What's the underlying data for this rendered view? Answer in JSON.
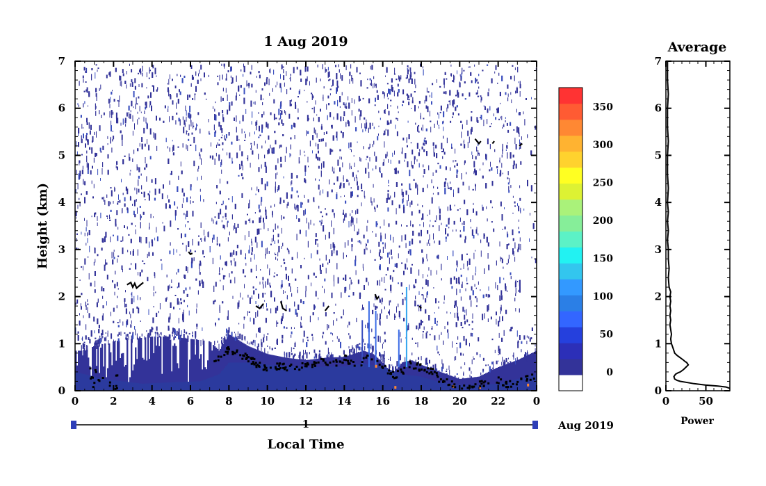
{
  "chart_data": [
    {
      "type": "heatmap",
      "title": "1 Aug 2019",
      "xlabel": "Local Time",
      "ylabel": "Height (km)",
      "xlim": [
        0,
        24
      ],
      "ylim": [
        0,
        7
      ],
      "x_ticks": [
        "0",
        "2",
        "4",
        "6",
        "8",
        "10",
        "12",
        "14",
        "16",
        "18",
        "20",
        "22",
        "0"
      ],
      "y_ticks": [
        "0",
        "1",
        "2",
        "3",
        "4",
        "5",
        "6",
        "7"
      ],
      "date_bar": {
        "day_label": "1",
        "month_label": "Aug 2019"
      },
      "colorbar": {
        "ticks": [
          "0",
          "50",
          "100",
          "150",
          "200",
          "250",
          "300",
          "350"
        ],
        "range": [
          -25,
          375
        ],
        "colors": [
          "#ffffff",
          "#333399",
          "#2c2fb8",
          "#2540dd",
          "#3366ff",
          "#2b7fe6",
          "#3399ff",
          "#33c6ee",
          "#22f2f2",
          "#5cf2c6",
          "#86ee99",
          "#aaf27a",
          "#ddf233",
          "#ffff22",
          "#ffd22e",
          "#ffb331",
          "#ff8833",
          "#ff5b33",
          "#ff3333"
        ]
      },
      "boundary_layer_top_km": [
        [
          0,
          0.85
        ],
        [
          0.5,
          0.85
        ],
        [
          1.0,
          0.95
        ],
        [
          2.0,
          1.05
        ],
        [
          3.0,
          1.1
        ],
        [
          4.0,
          1.15
        ],
        [
          5.0,
          1.15
        ],
        [
          6.0,
          1.1
        ],
        [
          7.0,
          1.05
        ],
        [
          7.5,
          0.85
        ],
        [
          8.0,
          1.2
        ],
        [
          9.0,
          0.95
        ],
        [
          10.0,
          0.78
        ],
        [
          11.0,
          0.7
        ],
        [
          12.0,
          0.65
        ],
        [
          13.0,
          0.7
        ],
        [
          14.0,
          0.72
        ],
        [
          15.0,
          0.85
        ],
        [
          15.5,
          0.78
        ],
        [
          16.0,
          0.6
        ],
        [
          16.5,
          0.35
        ],
        [
          17.0,
          0.6
        ],
        [
          17.5,
          0.65
        ],
        [
          18.0,
          0.55
        ],
        [
          19.0,
          0.4
        ],
        [
          20.0,
          0.25
        ],
        [
          21.0,
          0.3
        ],
        [
          22.0,
          0.5
        ],
        [
          23.0,
          0.65
        ],
        [
          24.0,
          0.85
        ]
      ],
      "dense_layer_top_km": [
        [
          0,
          0.4
        ],
        [
          1.5,
          0.25
        ],
        [
          2.5,
          0.2
        ],
        [
          3.5,
          0.15
        ],
        [
          5.0,
          0.18
        ],
        [
          6.5,
          0.2
        ],
        [
          7.5,
          0.35
        ],
        [
          8.0,
          0.6
        ],
        [
          9.0,
          0.6
        ],
        [
          10.0,
          0.55
        ],
        [
          12.0,
          0.5
        ],
        [
          14.0,
          0.52
        ],
        [
          15.0,
          0.58
        ],
        [
          16.0,
          0.5
        ],
        [
          17.0,
          0.35
        ],
        [
          18.0,
          0.3
        ],
        [
          19.0,
          0.18
        ],
        [
          20.0,
          0.12
        ],
        [
          21.0,
          0.12
        ],
        [
          22.0,
          0.15
        ],
        [
          23.0,
          0.25
        ],
        [
          24.0,
          0.35
        ]
      ],
      "feature_traces_km": [
        [
          [
            2.7,
            2.25
          ],
          [
            2.9,
            2.3
          ],
          [
            3.0,
            2.2
          ],
          [
            3.1,
            2.28
          ],
          [
            3.2,
            2.18
          ],
          [
            3.4,
            2.25
          ],
          [
            3.55,
            2.3
          ]
        ],
        [
          [
            5.9,
            2.95
          ],
          [
            6.0,
            2.9
          ],
          [
            6.1,
            2.92
          ]
        ],
        [
          [
            20.8,
            5.35
          ],
          [
            21.0,
            5.25
          ],
          [
            21.1,
            5.3
          ]
        ],
        [
          [
            21.7,
            5.25
          ],
          [
            21.8,
            5.3
          ]
        ],
        [
          [
            23.1,
            5.2
          ],
          [
            23.25,
            5.25
          ]
        ],
        [
          [
            9.4,
            1.8
          ],
          [
            9.6,
            1.75
          ],
          [
            9.8,
            1.85
          ]
        ],
        [
          [
            10.7,
            1.9
          ],
          [
            10.8,
            1.75
          ],
          [
            11.0,
            1.7
          ]
        ],
        [
          [
            13.0,
            1.7
          ],
          [
            13.2,
            1.8
          ]
        ],
        [
          [
            15.6,
            2.05
          ],
          [
            15.7,
            1.95
          ],
          [
            15.8,
            2.0
          ]
        ],
        [
          [
            17.9,
            1.8
          ],
          [
            18.0,
            1.75
          ]
        ]
      ],
      "bl_dot_trace_km": [
        [
          7.2,
          0.65
        ],
        [
          7.5,
          0.75
        ],
        [
          8.0,
          0.9
        ],
        [
          8.5,
          0.8
        ],
        [
          9.0,
          0.7
        ],
        [
          9.5,
          0.55
        ],
        [
          10.0,
          0.5
        ],
        [
          10.5,
          0.55
        ],
        [
          11.0,
          0.5
        ],
        [
          12.0,
          0.55
        ],
        [
          12.5,
          0.6
        ],
        [
          13.0,
          0.65
        ],
        [
          13.5,
          0.6
        ],
        [
          14.0,
          0.7
        ],
        [
          14.5,
          0.55
        ],
        [
          15.0,
          0.65
        ],
        [
          15.3,
          0.75
        ],
        [
          15.6,
          0.65
        ],
        [
          16.0,
          0.5
        ],
        [
          16.3,
          0.4
        ],
        [
          16.6,
          0.35
        ],
        [
          17.0,
          0.45
        ],
        [
          17.3,
          0.6
        ],
        [
          17.6,
          0.55
        ],
        [
          18.0,
          0.5
        ],
        [
          18.5,
          0.45
        ],
        [
          18.8,
          0.3
        ],
        [
          19.2,
          0.2
        ],
        [
          19.6,
          0.15
        ],
        [
          20.0,
          0.12
        ],
        [
          20.5,
          0.1
        ],
        [
          21.0,
          0.15
        ],
        [
          21.5,
          0.2
        ],
        [
          22.0,
          0.25
        ],
        [
          22.5,
          0.15
        ],
        [
          23.0,
          0.2
        ],
        [
          23.5,
          0.3
        ],
        [
          24.0,
          0.35
        ]
      ],
      "warm_spots_km": [
        [
          15.6,
          0.55
        ],
        [
          16.6,
          0.1
        ],
        [
          19.6,
          0.12
        ],
        [
          21.0,
          0.1
        ],
        [
          23.5,
          0.15
        ]
      ]
    },
    {
      "type": "line",
      "title": "Average",
      "xlabel": "Power",
      "ylabel": "",
      "xlim": [
        0,
        80
      ],
      "ylim": [
        0,
        7
      ],
      "x_ticks": [
        "0",
        "50"
      ],
      "y_ticks": [
        "0",
        "1",
        "2",
        "3",
        "4",
        "5",
        "6",
        "7"
      ],
      "series": [
        {
          "points": [
            [
              80,
              0.05
            ],
            [
              75,
              0.08
            ],
            [
              65,
              0.1
            ],
            [
              50,
              0.12
            ],
            [
              35,
              0.15
            ],
            [
              25,
              0.18
            ],
            [
              18,
              0.2
            ],
            [
              14,
              0.22
            ],
            [
              11,
              0.25
            ],
            [
              10,
              0.3
            ],
            [
              12,
              0.35
            ],
            [
              15,
              0.38
            ],
            [
              18,
              0.4
            ],
            [
              22,
              0.45
            ],
            [
              25,
              0.5
            ],
            [
              28,
              0.55
            ],
            [
              26,
              0.6
            ],
            [
              24,
              0.62
            ],
            [
              22,
              0.65
            ],
            [
              18,
              0.7
            ],
            [
              14,
              0.75
            ],
            [
              11,
              0.8
            ],
            [
              9,
              0.9
            ],
            [
              8,
              0.95
            ],
            [
              7,
              1.0
            ],
            [
              6,
              1.1
            ],
            [
              7,
              1.2
            ],
            [
              6,
              1.3
            ],
            [
              5,
              1.4
            ],
            [
              6,
              1.5
            ],
            [
              5,
              1.6
            ],
            [
              6,
              1.7
            ],
            [
              5,
              1.8
            ],
            [
              6,
              1.9
            ],
            [
              5,
              2.0
            ],
            [
              6,
              2.1
            ],
            [
              4,
              2.2
            ],
            [
              3,
              2.4
            ],
            [
              4,
              2.6
            ],
            [
              3,
              2.8
            ],
            [
              3,
              3.0
            ],
            [
              2,
              3.2
            ],
            [
              3,
              3.4
            ],
            [
              2,
              3.6
            ],
            [
              3,
              3.8
            ],
            [
              2,
              4.0
            ],
            [
              3,
              4.3
            ],
            [
              2,
              4.6
            ],
            [
              2,
              5.0
            ],
            [
              3,
              5.3
            ],
            [
              2,
              5.6
            ],
            [
              2,
              6.0
            ],
            [
              3,
              6.3
            ],
            [
              2,
              6.6
            ],
            [
              2,
              7.0
            ]
          ]
        }
      ]
    }
  ]
}
